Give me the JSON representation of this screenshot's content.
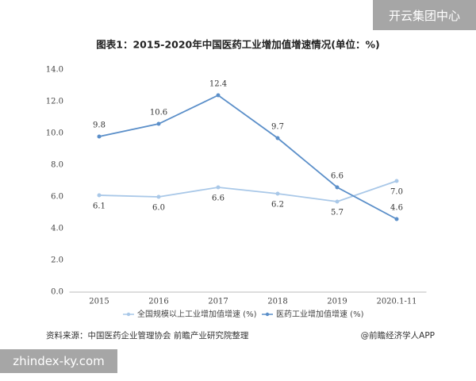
{
  "chart_data": {
    "type": "line",
    "title": "图表1：2015-2020年中国医药工业增加值增速情况(单位：%)",
    "categories": [
      "2015",
      "2016",
      "2017",
      "2018",
      "2019",
      "2020.1-11"
    ],
    "series": [
      {
        "name": "全国规模以上工业增加值增速 (%)",
        "color": "#a9c8e8",
        "values": [
          6.1,
          6.0,
          6.6,
          6.2,
          5.7,
          7.0
        ],
        "value_labels": [
          "6.1",
          "6.0",
          "6.6",
          "6.2",
          "5.7",
          "7.0"
        ]
      },
      {
        "name": "医药工业增加值增速 (%)",
        "color": "#5b8fc9",
        "values": [
          9.8,
          10.6,
          12.4,
          9.7,
          6.6,
          4.6
        ],
        "value_labels": [
          "9.8",
          "10.6",
          "12.4",
          "9.7",
          "6.6",
          "4.6"
        ]
      }
    ],
    "ylim": [
      0,
      14
    ],
    "yticks": [
      {
        "value": 0,
        "label": "0.0"
      },
      {
        "value": 2,
        "label": "2.0"
      },
      {
        "value": 4,
        "label": "4.0"
      },
      {
        "value": 6,
        "label": "6.0"
      },
      {
        "value": 8,
        "label": "8.0"
      },
      {
        "value": 10,
        "label": "10.0"
      },
      {
        "value": 12,
        "label": "12.0"
      },
      {
        "value": 14,
        "label": "14.0"
      }
    ],
    "grid": false
  },
  "source": "资料来源：中国医药企业管理协会 前瞻产业研究院整理",
  "credit": "@前瞻经济学人APP",
  "overlay_top": "开云集团中心",
  "overlay_bottom": "zhindex-ky.com"
}
